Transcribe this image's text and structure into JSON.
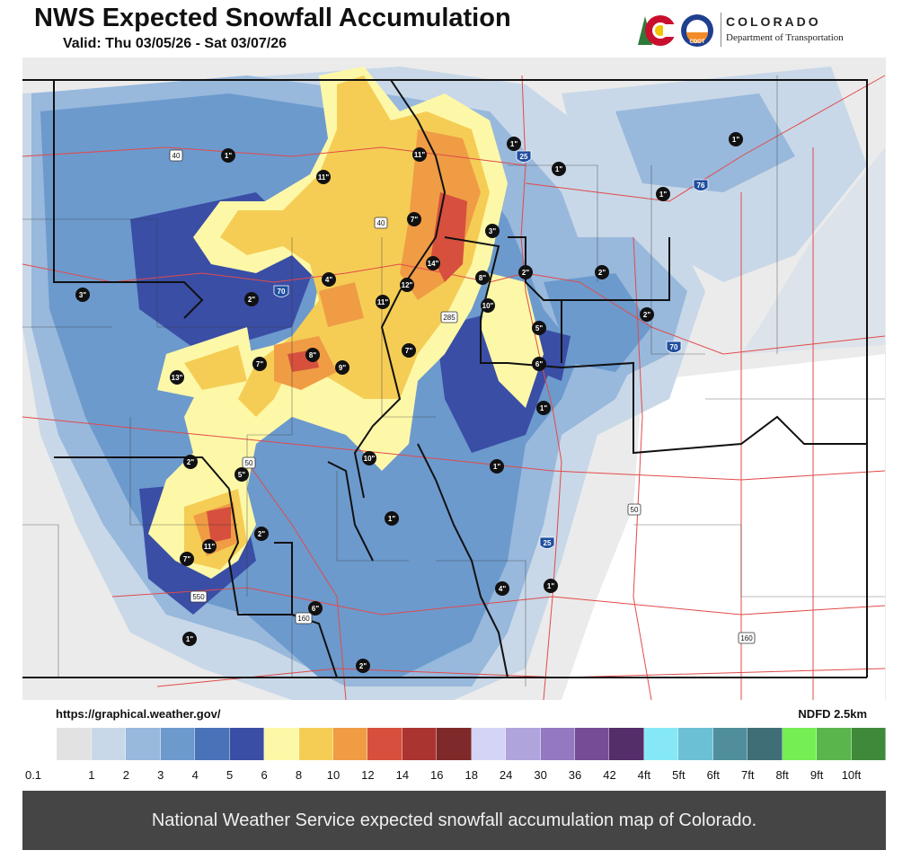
{
  "header": {
    "title": "NWS Expected Snowfall Accumulation",
    "valid": "Valid: Thu 03/05/26 - Sat 03/07/26"
  },
  "logo": {
    "line1": "COLORADO",
    "line2": "Department of Transportation",
    "badge": "CDOT"
  },
  "source_left": "https://graphical.weather.gov/",
  "source_right": "NDFD 2.5km",
  "caption": "National Weather Service expected snowfall accumulation map of Colorado.",
  "legend": {
    "labels": [
      "0.1",
      "1",
      "2",
      "3",
      "4",
      "5",
      "6",
      "8",
      "10",
      "12",
      "14",
      "16",
      "18",
      "24",
      "30",
      "36",
      "42",
      "4ft",
      "5ft",
      "6ft",
      "7ft",
      "8ft",
      "9ft",
      "10ft"
    ],
    "colors": [
      "#ffffff",
      "#e2e2e2",
      "#c8d8e8",
      "#98b8dc",
      "#6c9acd",
      "#4a72b8",
      "#3a4ea6",
      "#fdf8a8",
      "#f5cd55",
      "#ef9c45",
      "#d6503d",
      "#aa3530",
      "#7f2a2a",
      "#d4d4f6",
      "#b0a4dc",
      "#9478c0",
      "#764c96",
      "#542e68",
      "#86e8f6",
      "#6cc0d6",
      "#508e9c",
      "#406e76",
      "#74ee52",
      "#5ab64c",
      "#3f8a3a"
    ]
  },
  "map": {
    "colors": {
      "background": "#ebebeb",
      "light_blue": "#c8d8e8",
      "mid_blue": "#98b8dc",
      "blue": "#6c9acd",
      "dark_blue": "#3a4ea6",
      "pale_yellow": "#fdf8a8",
      "gold": "#f5cd55",
      "orange": "#ef9c45",
      "red": "#d6503d",
      "county_line": "#3b3b3b",
      "road": "#e24a4a"
    },
    "markers": [
      {
        "label": "1\"",
        "name": "marker-1in-northwest"
      },
      {
        "label": "11\"",
        "name": "marker-11in-north-park"
      },
      {
        "label": "11\"",
        "name": "marker-11in-front-range-north"
      },
      {
        "label": "1\"",
        "name": "marker-1in-fort-collins"
      },
      {
        "label": "1\"",
        "name": "marker-1in-greeley"
      },
      {
        "label": "1\"",
        "name": "marker-1in-sterling"
      },
      {
        "label": "1\"",
        "name": "marker-1in-fort-morgan"
      },
      {
        "label": "7\"",
        "name": "marker-7in-granby"
      },
      {
        "label": "3\"",
        "name": "marker-3in-boulder"
      },
      {
        "label": "14\"",
        "name": "marker-14in-continental-divide"
      },
      {
        "label": "12\"",
        "name": "marker-12in-divide"
      },
      {
        "label": "8\"",
        "name": "marker-8in-evergreen"
      },
      {
        "label": "2\"",
        "name": "marker-2in-denver"
      },
      {
        "label": "2\"",
        "name": "marker-2in-east-denver"
      },
      {
        "label": "2\"",
        "name": "marker-2in-limon-west"
      },
      {
        "label": "4\"",
        "name": "marker-4in-yampa"
      },
      {
        "label": "2\"",
        "name": "marker-2in-rifle"
      },
      {
        "label": "3\"",
        "name": "marker-3in-grand-junction-north"
      },
      {
        "label": "11\"",
        "name": "marker-11in-summit"
      },
      {
        "label": "10\"",
        "name": "marker-10in-conifer"
      },
      {
        "label": "5\"",
        "name": "marker-5in-castle-rock"
      },
      {
        "label": "6\"",
        "name": "marker-6in-monument"
      },
      {
        "label": "7\"",
        "name": "marker-7in-breckenridge"
      },
      {
        "label": "8\"",
        "name": "marker-8in-aspen"
      },
      {
        "label": "7\"",
        "name": "marker-7in-carbondale"
      },
      {
        "label": "9\"",
        "name": "marker-9in-leadville"
      },
      {
        "label": "13\"",
        "name": "marker-13in-grand-mesa"
      },
      {
        "label": "1\"",
        "name": "marker-1in-colorado-springs"
      },
      {
        "label": "10\"",
        "name": "marker-10in-monarch"
      },
      {
        "label": "1\"",
        "name": "marker-1in-canon-city"
      },
      {
        "label": "2\"",
        "name": "marker-2in-montrose"
      },
      {
        "label": "5\"",
        "name": "marker-5in-lake-city"
      },
      {
        "label": "2\"",
        "name": "marker-2in-south-san-juans"
      },
      {
        "label": "11\"",
        "name": "marker-11in-ouray"
      },
      {
        "label": "7\"",
        "name": "marker-7in-silverton"
      },
      {
        "label": "1\"",
        "name": "marker-1in-alamosa"
      },
      {
        "label": "4\"",
        "name": "marker-4in-sangre-de-cristo"
      },
      {
        "label": "1\"",
        "name": "marker-1in-walsenburg"
      },
      {
        "label": "6\"",
        "name": "marker-6in-wolf-creek"
      },
      {
        "label": "1\"",
        "name": "marker-1in-durango"
      },
      {
        "label": "2\"",
        "name": "marker-2in-south-conejos"
      }
    ],
    "shields": [
      {
        "label": "40",
        "name": "us-40-shield-northwest"
      },
      {
        "label": "40",
        "name": "us-40-shield-central"
      },
      {
        "label": "285",
        "name": "us-285-shield"
      },
      {
        "label": "50",
        "name": "us-50-shield-west"
      },
      {
        "label": "50",
        "name": "us-50-shield-east"
      },
      {
        "label": "550",
        "name": "us-550-shield"
      },
      {
        "label": "160",
        "name": "us-160-shield-west"
      },
      {
        "label": "160",
        "name": "us-160-shield-east"
      }
    ],
    "interstates": [
      {
        "label": "25",
        "name": "i-25-shield-north"
      },
      {
        "label": "76",
        "name": "i-76-shield"
      },
      {
        "label": "70",
        "name": "i-70-shield-west"
      },
      {
        "label": "70",
        "name": "i-70-shield-east"
      },
      {
        "label": "25",
        "name": "i-25-shield-south"
      }
    ]
  }
}
